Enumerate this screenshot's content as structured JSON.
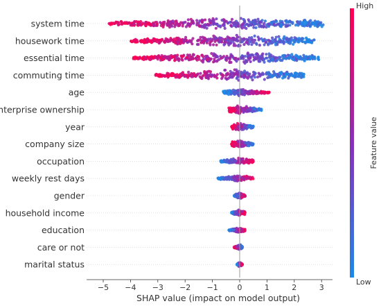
{
  "chart_data": {
    "type": "beeswarm",
    "xlabel": "SHAP value (impact on model output)",
    "xlim": [
      -5.2,
      3.3
    ],
    "xticks": [
      -5,
      -4,
      -3,
      -2,
      -1,
      0,
      1,
      2,
      3
    ],
    "colorbar": {
      "title": "Feature value",
      "high_label": "High",
      "low_label": "Low",
      "high_color": "#ff0052",
      "low_color": "#1e88e5"
    },
    "features": [
      {
        "name": "system time",
        "min": -4.8,
        "max": 3.1,
        "spread": 10,
        "skew": 1,
        "center": 0
      },
      {
        "name": "housework time",
        "min": -4.0,
        "max": 2.8,
        "spread": 9,
        "skew": 1,
        "center": 0
      },
      {
        "name": "essential time",
        "min": -3.9,
        "max": 2.9,
        "spread": 9,
        "skew": 1,
        "center": 0
      },
      {
        "name": "commuting time",
        "min": -3.1,
        "max": 2.4,
        "spread": 9,
        "skew": 1,
        "center": 0
      },
      {
        "name": "age",
        "min": -0.6,
        "max": 1.1,
        "spread": 5,
        "skew": -1,
        "center": 0
      },
      {
        "name": "enterprise ownership",
        "min": -0.4,
        "max": 0.8,
        "spread": 6,
        "skew": 1,
        "center": 0
      },
      {
        "name": "year",
        "min": -0.3,
        "max": 0.5,
        "spread": 6,
        "skew": 1,
        "center": 0
      },
      {
        "name": "company size",
        "min": -0.3,
        "max": 0.5,
        "spread": 6,
        "skew": 1,
        "center": 0
      },
      {
        "name": "occupation",
        "min": -0.7,
        "max": 0.5,
        "spread": 5,
        "skew": -1,
        "center": 0
      },
      {
        "name": "weekly rest days",
        "min": -0.8,
        "max": 0.5,
        "spread": 5,
        "skew": -1,
        "center": 0
      },
      {
        "name": "gender",
        "min": -0.2,
        "max": 0.2,
        "spread": 5,
        "skew": -1,
        "center": 0
      },
      {
        "name": "household income",
        "min": -0.3,
        "max": 0.2,
        "spread": 5,
        "skew": -1,
        "center": 0
      },
      {
        "name": "education",
        "min": -0.4,
        "max": 0.2,
        "spread": 4,
        "skew": -1,
        "center": 0
      },
      {
        "name": "care or not",
        "min": -0.2,
        "max": 0.1,
        "spread": 4,
        "skew": 1,
        "center": 0
      },
      {
        "name": "marital status",
        "min": -0.1,
        "max": 0.1,
        "spread": 4,
        "skew": -1,
        "center": 0
      }
    ]
  }
}
